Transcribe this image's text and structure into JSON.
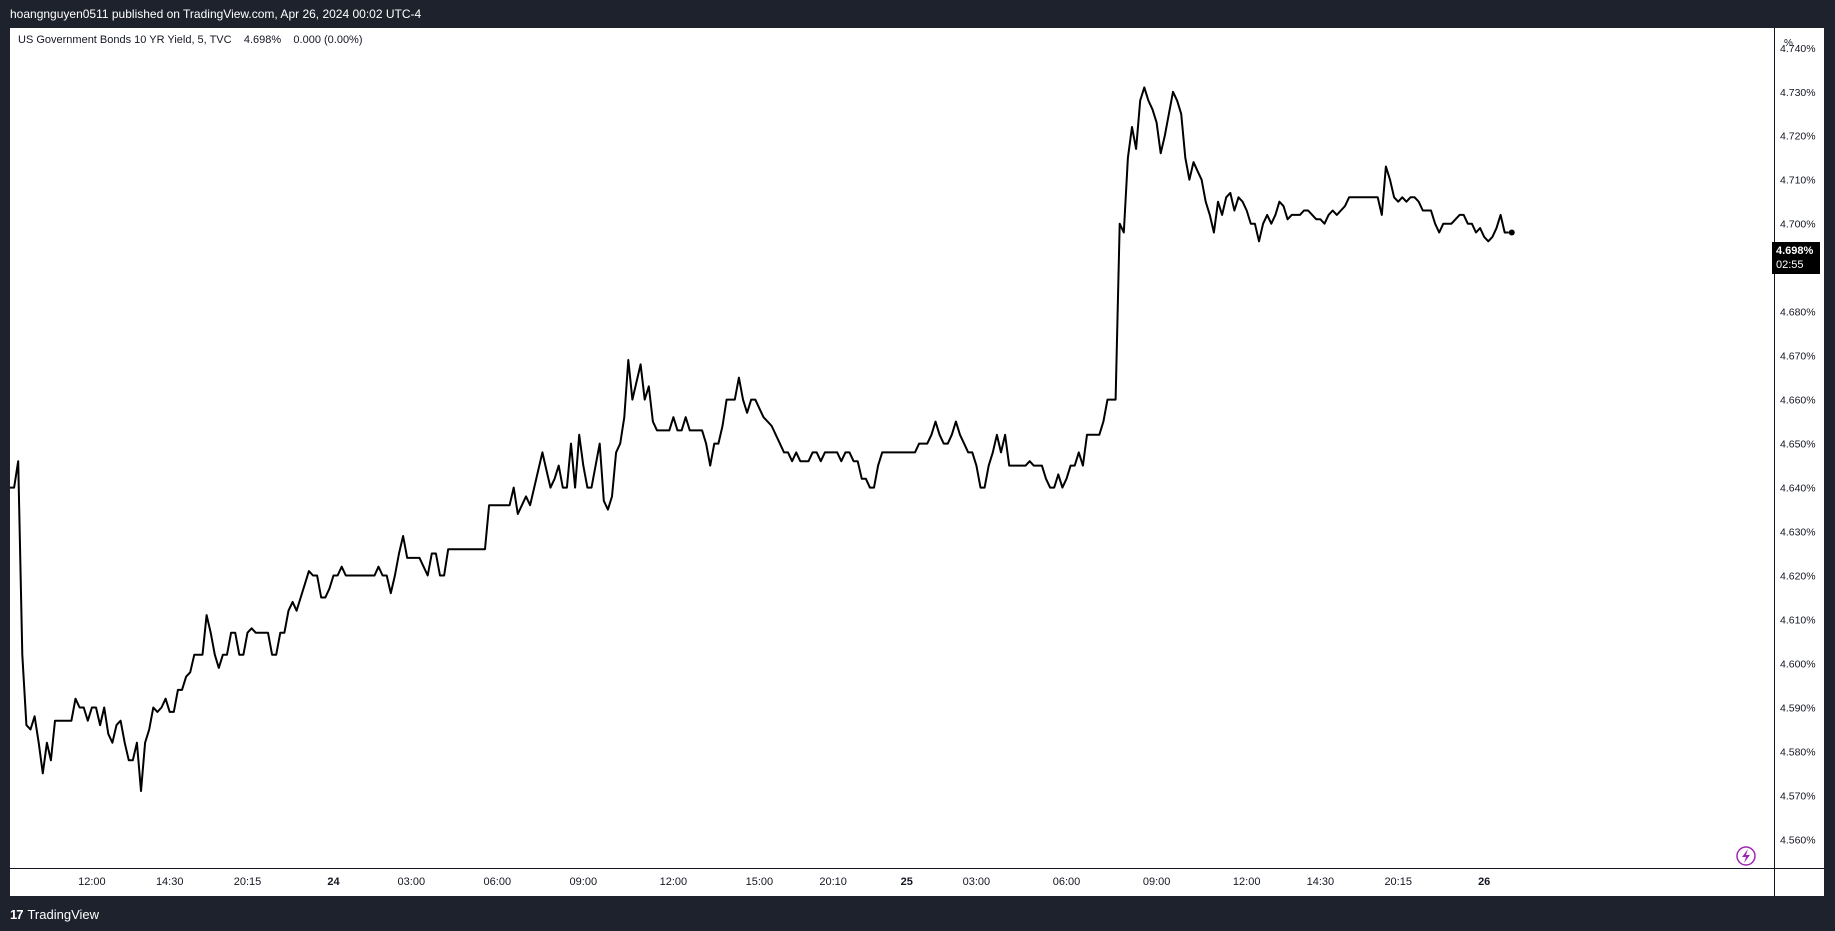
{
  "header": {
    "publish_text": "hoangnguyen0511 published on TradingView.com, Apr 26, 2024 00:02 UTC-4"
  },
  "legend": {
    "symbol": "US Government Bonds 10 YR Yield, 5, TVC",
    "value": "4.698%",
    "change": "0.000 (0.00%)"
  },
  "price_scale": {
    "unit": "%",
    "last_price": "4.698%",
    "countdown": "02:55"
  },
  "footer": {
    "brand": "TradingView",
    "logo_mark": "17"
  },
  "colors": {
    "background": "#1e222d",
    "chart_bg": "#ffffff",
    "line": "#000000",
    "text": "#131722",
    "accent_icon": "#9c27b0"
  },
  "icons": {
    "logo": "tradingview-logo-icon",
    "lightning": "lightning-icon"
  },
  "chart_data": {
    "type": "line",
    "title": "",
    "xlabel": "",
    "ylabel": "",
    "ylim": [
      4.5535,
      4.7445
    ],
    "y_ticks": [
      "4.740%",
      "4.730%",
      "4.720%",
      "4.710%",
      "4.700%",
      "4.690%",
      "4.680%",
      "4.670%",
      "4.660%",
      "4.650%",
      "4.640%",
      "4.630%",
      "4.620%",
      "4.610%",
      "4.600%",
      "4.590%",
      "4.580%",
      "4.570%",
      "4.560%"
    ],
    "y_tick_values": [
      4.74,
      4.73,
      4.72,
      4.71,
      4.7,
      4.69,
      4.68,
      4.67,
      4.66,
      4.65,
      4.64,
      4.63,
      4.62,
      4.61,
      4.6,
      4.59,
      4.58,
      4.57,
      4.56
    ],
    "x_ticks": [
      {
        "label": "12:00",
        "i": 20,
        "bold": false
      },
      {
        "label": "14:30",
        "i": 39,
        "bold": false
      },
      {
        "label": "20:15",
        "i": 58,
        "bold": false
      },
      {
        "label": "24",
        "i": 79,
        "bold": true
      },
      {
        "label": "03:00",
        "i": 98,
        "bold": false
      },
      {
        "label": "06:00",
        "i": 119,
        "bold": false
      },
      {
        "label": "09:00",
        "i": 140,
        "bold": false
      },
      {
        "label": "12:00",
        "i": 162,
        "bold": false
      },
      {
        "label": "15:00",
        "i": 183,
        "bold": false
      },
      {
        "label": "20:10",
        "i": 201,
        "bold": false
      },
      {
        "label": "25",
        "i": 219,
        "bold": true
      },
      {
        "label": "03:00",
        "i": 236,
        "bold": false
      },
      {
        "label": "06:00",
        "i": 258,
        "bold": false
      },
      {
        "label": "09:00",
        "i": 280,
        "bold": false
      },
      {
        "label": "12:00",
        "i": 302,
        "bold": false
      },
      {
        "label": "14:30",
        "i": 320,
        "bold": false
      },
      {
        "label": "20:15",
        "i": 339,
        "bold": false
      },
      {
        "label": "26",
        "i": 360,
        "bold": true
      }
    ],
    "series": [
      {
        "values": [
          4.64,
          4.64,
          4.646,
          4.602,
          4.586,
          4.585,
          4.588,
          4.582,
          4.575,
          4.582,
          4.578,
          4.587,
          4.587,
          4.587,
          4.587,
          4.587,
          4.592,
          4.59,
          4.59,
          4.587,
          4.59,
          4.59,
          4.586,
          4.59,
          4.584,
          4.582,
          4.586,
          4.587,
          4.582,
          4.578,
          4.578,
          4.582,
          4.571,
          4.582,
          4.585,
          4.59,
          4.589,
          4.59,
          4.592,
          4.589,
          4.589,
          4.594,
          4.594,
          4.597,
          4.598,
          4.602,
          4.602,
          4.602,
          4.611,
          4.607,
          4.602,
          4.599,
          4.602,
          4.602,
          4.607,
          4.607,
          4.602,
          4.602,
          4.607,
          4.608,
          4.607,
          4.607,
          4.607,
          4.607,
          4.602,
          4.602,
          4.607,
          4.607,
          4.612,
          4.614,
          4.612,
          4.615,
          4.618,
          4.621,
          4.62,
          4.62,
          4.615,
          4.615,
          4.617,
          4.62,
          4.62,
          4.622,
          4.62,
          4.62,
          4.62,
          4.62,
          4.62,
          4.62,
          4.62,
          4.62,
          4.622,
          4.62,
          4.62,
          4.616,
          4.62,
          4.625,
          4.629,
          4.624,
          4.624,
          4.624,
          4.624,
          4.622,
          4.62,
          4.625,
          4.625,
          4.62,
          4.62,
          4.626,
          4.626,
          4.626,
          4.626,
          4.626,
          4.626,
          4.626,
          4.626,
          4.626,
          4.626,
          4.636,
          4.636,
          4.636,
          4.636,
          4.636,
          4.636,
          4.64,
          4.634,
          4.636,
          4.638,
          4.636,
          4.64,
          4.644,
          4.648,
          4.644,
          4.64,
          4.642,
          4.645,
          4.64,
          4.64,
          4.65,
          4.64,
          4.652,
          4.645,
          4.64,
          4.64,
          4.645,
          4.65,
          4.637,
          4.635,
          4.638,
          4.648,
          4.65,
          4.656,
          4.669,
          4.66,
          4.664,
          4.668,
          4.66,
          4.663,
          4.655,
          4.653,
          4.653,
          4.653,
          4.653,
          4.656,
          4.653,
          4.653,
          4.656,
          4.653,
          4.653,
          4.653,
          4.653,
          4.65,
          4.645,
          4.65,
          4.65,
          4.654,
          4.66,
          4.66,
          4.66,
          4.665,
          4.66,
          4.657,
          4.66,
          4.66,
          4.658,
          4.656,
          4.655,
          4.654,
          4.652,
          4.65,
          4.648,
          4.648,
          4.646,
          4.648,
          4.646,
          4.646,
          4.646,
          4.648,
          4.648,
          4.646,
          4.648,
          4.648,
          4.648,
          4.648,
          4.646,
          4.648,
          4.648,
          4.646,
          4.646,
          4.642,
          4.642,
          4.64,
          4.64,
          4.645,
          4.648,
          4.648,
          4.648,
          4.648,
          4.648,
          4.648,
          4.648,
          4.648,
          4.648,
          4.65,
          4.65,
          4.65,
          4.652,
          4.655,
          4.652,
          4.65,
          4.65,
          4.652,
          4.655,
          4.652,
          4.65,
          4.648,
          4.648,
          4.645,
          4.64,
          4.64,
          4.645,
          4.648,
          4.652,
          4.648,
          4.652,
          4.645,
          4.645,
          4.645,
          4.645,
          4.645,
          4.646,
          4.645,
          4.645,
          4.645,
          4.642,
          4.64,
          4.64,
          4.643,
          4.64,
          4.642,
          4.645,
          4.645,
          4.648,
          4.645,
          4.652,
          4.652,
          4.652,
          4.652,
          4.655,
          4.66,
          4.66,
          4.66,
          4.7,
          4.698,
          4.715,
          4.722,
          4.717,
          4.728,
          4.731,
          4.728,
          4.726,
          4.723,
          4.716,
          4.72,
          4.725,
          4.73,
          4.728,
          4.725,
          4.715,
          4.71,
          4.714,
          4.712,
          4.71,
          4.705,
          4.702,
          4.698,
          4.705,
          4.702,
          4.706,
          4.707,
          4.703,
          4.706,
          4.705,
          4.703,
          4.7,
          4.7,
          4.696,
          4.7,
          4.702,
          4.7,
          4.702,
          4.705,
          4.704,
          4.701,
          4.702,
          4.702,
          4.702,
          4.703,
          4.703,
          4.702,
          4.701,
          4.701,
          4.7,
          4.702,
          4.703,
          4.702,
          4.703,
          4.704,
          4.706,
          4.706,
          4.706,
          4.706,
          4.706,
          4.706,
          4.706,
          4.706,
          4.702,
          4.713,
          4.71,
          4.706,
          4.705,
          4.706,
          4.705,
          4.706,
          4.706,
          4.705,
          4.703,
          4.703,
          4.703,
          4.7,
          4.698,
          4.7,
          4.7,
          4.7,
          4.701,
          4.702,
          4.702,
          4.7,
          4.7,
          4.698,
          4.699,
          4.697,
          4.696,
          4.697,
          4.699,
          4.702,
          4.698,
          4.698
        ]
      }
    ],
    "last_marker": 4.698,
    "grid": false,
    "legend_position": "top-left"
  }
}
